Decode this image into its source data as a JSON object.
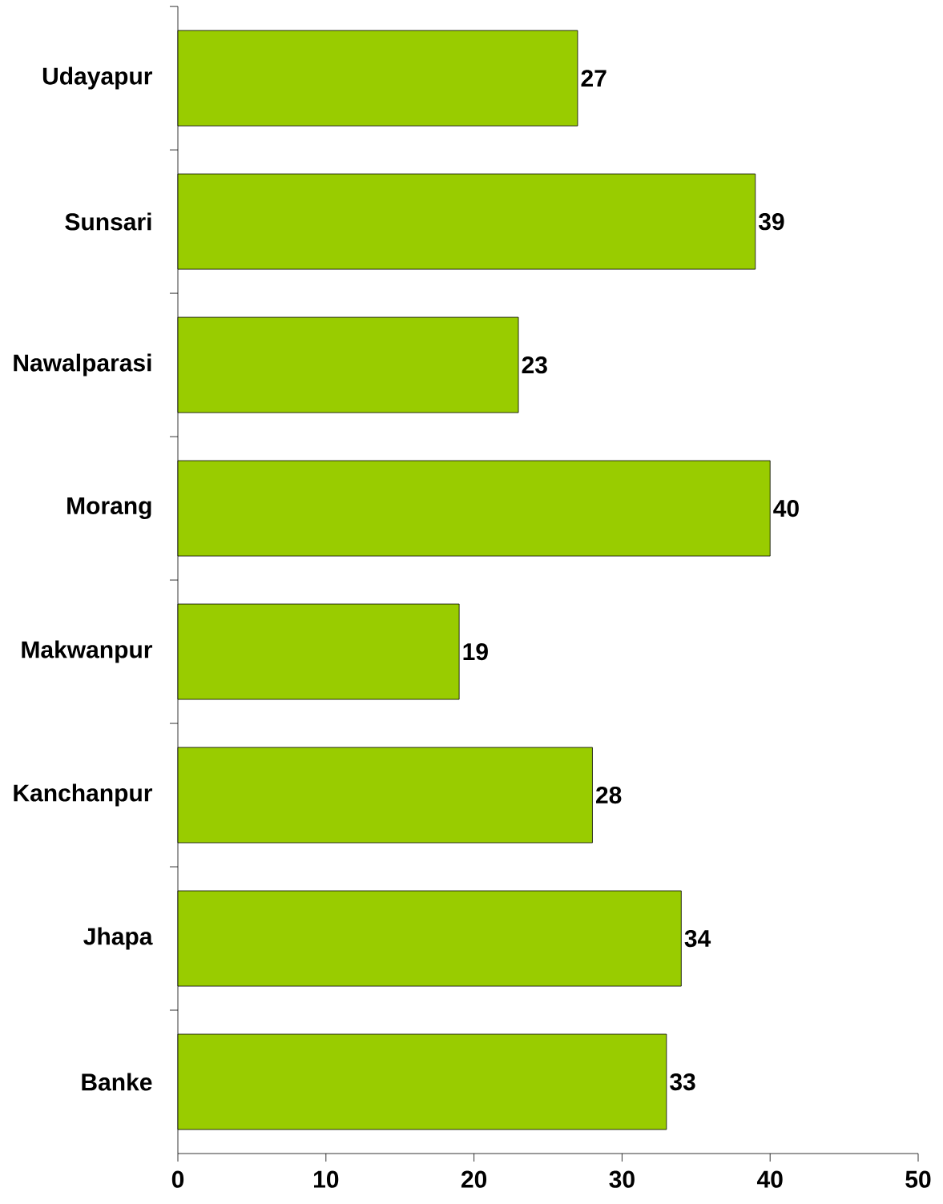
{
  "chart_data": {
    "type": "bar",
    "orientation": "horizontal",
    "categories": [
      "Udayapur",
      "Sunsari",
      "Nawalparasi",
      "Morang",
      "Makwanpur",
      "Kanchanpur",
      "Jhapa",
      "Banke"
    ],
    "values": [
      27,
      39,
      23,
      40,
      19,
      28,
      34,
      33
    ],
    "color": "#99cc00",
    "xlim": [
      0,
      50
    ],
    "xticks": [
      0,
      10,
      20,
      30,
      40,
      50
    ],
    "data_labels": true,
    "grid": false
  }
}
